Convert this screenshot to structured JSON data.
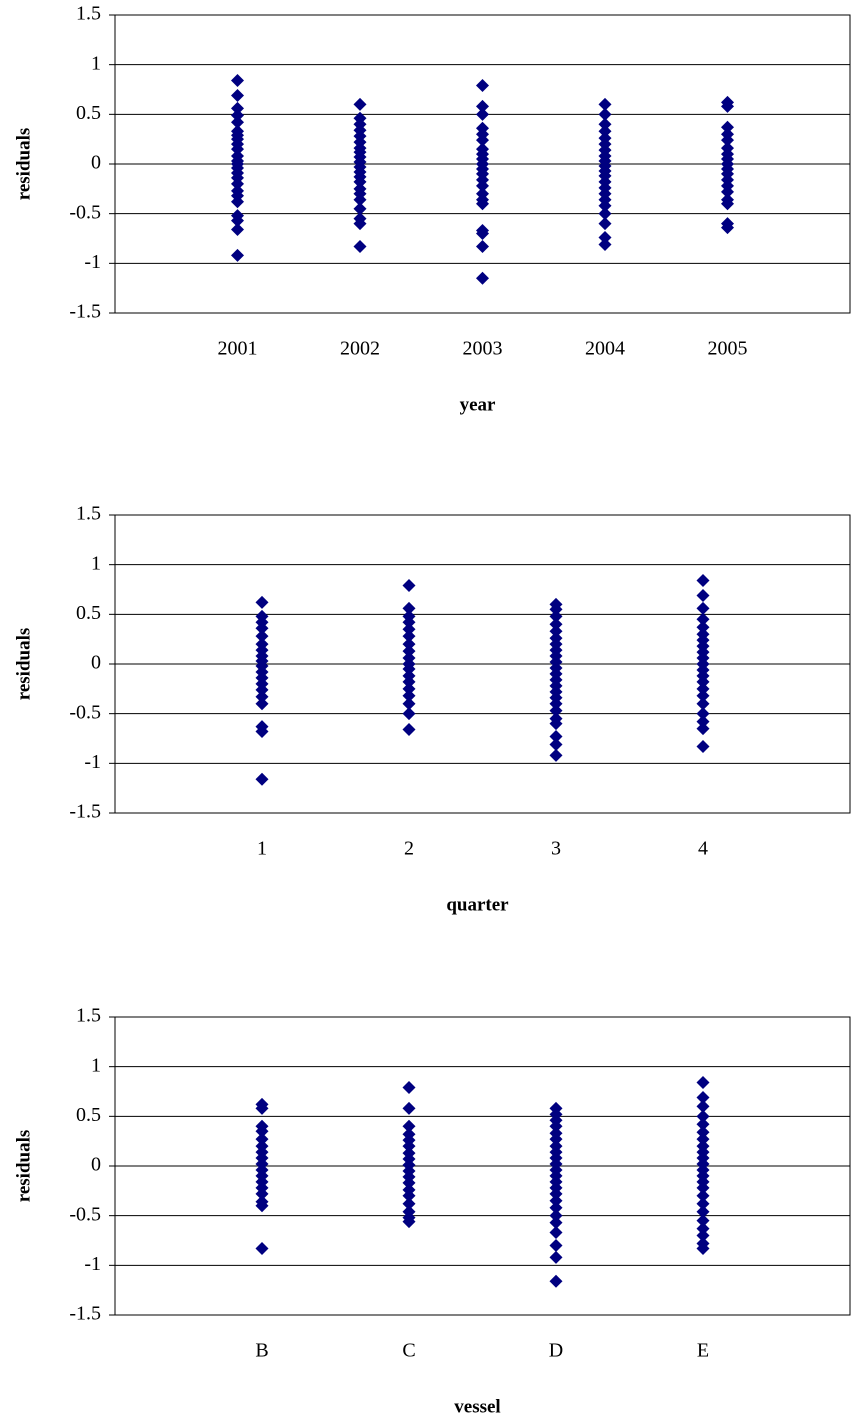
{
  "chart_data": [
    {
      "type": "scatter",
      "y_label": "residuals",
      "x_label": "year",
      "color": "#000080",
      "grid": true,
      "ylim": [
        -1.5,
        1.5
      ],
      "yticks": [
        1.5,
        1,
        0.5,
        0,
        -0.5,
        -1,
        -1.5
      ],
      "categories": [
        "2001",
        "2002",
        "2003",
        "2004",
        "2005"
      ],
      "values": [
        [
          0.84,
          0.69,
          0.56,
          0.49,
          0.42,
          0.33,
          0.29,
          0.25,
          0.2,
          0.15,
          0.08,
          0.03,
          0,
          -0.04,
          -0.09,
          -0.14,
          -0.2,
          -0.27,
          -0.32,
          -0.38,
          -0.52,
          -0.57,
          -0.66,
          -0.92
        ],
        [
          0.6,
          0.46,
          0.4,
          0.34,
          0.28,
          0.22,
          0.16,
          0.12,
          0.07,
          0.02,
          -0.03,
          -0.08,
          -0.13,
          -0.18,
          -0.25,
          -0.3,
          -0.36,
          -0.45,
          -0.55,
          -0.6,
          -0.83
        ],
        [
          0.79,
          0.58,
          0.5,
          0.36,
          0.3,
          0.24,
          0.15,
          0.1,
          0.05,
          0,
          -0.05,
          -0.1,
          -0.16,
          -0.22,
          -0.3,
          -0.36,
          -0.4,
          -0.67,
          -0.7,
          -0.83,
          -1.15
        ],
        [
          0.6,
          0.5,
          0.4,
          0.33,
          0.26,
          0.2,
          0.14,
          0.08,
          0.03,
          -0.02,
          -0.07,
          -0.12,
          -0.18,
          -0.24,
          -0.3,
          -0.36,
          -0.42,
          -0.5,
          -0.6,
          -0.74,
          -0.81
        ],
        [
          0.62,
          0.58,
          0.37,
          0.3,
          0.24,
          0.16,
          0.1,
          0.05,
          0,
          -0.05,
          -0.1,
          -0.16,
          -0.22,
          -0.28,
          -0.36,
          -0.4,
          -0.6,
          -0.64
        ]
      ]
    },
    {
      "type": "scatter",
      "y_label": "residuals",
      "x_label": "quarter",
      "color": "#000080",
      "grid": true,
      "ylim": [
        -1.5,
        1.5
      ],
      "yticks": [
        1.5,
        1,
        0.5,
        0,
        -0.5,
        -1,
        -1.5
      ],
      "categories": [
        "1",
        "2",
        "3",
        "4"
      ],
      "values": [
        [
          0.62,
          0.48,
          0.42,
          0.36,
          0.28,
          0.2,
          0.14,
          0.08,
          0.03,
          -0.02,
          -0.08,
          -0.14,
          -0.2,
          -0.26,
          -0.33,
          -0.4,
          -0.63,
          -0.68,
          -1.16
        ],
        [
          0.79,
          0.56,
          0.48,
          0.42,
          0.35,
          0.28,
          0.2,
          0.13,
          0.06,
          0,
          -0.05,
          -0.12,
          -0.18,
          -0.25,
          -0.32,
          -0.4,
          -0.5,
          -0.66
        ],
        [
          0.6,
          0.55,
          0.48,
          0.4,
          0.33,
          0.26,
          0.2,
          0.14,
          0.08,
          0.02,
          -0.04,
          -0.1,
          -0.16,
          -0.22,
          -0.28,
          -0.34,
          -0.4,
          -0.47,
          -0.55,
          -0.6,
          -0.73,
          -0.81,
          -0.92
        ],
        [
          0.84,
          0.69,
          0.56,
          0.45,
          0.37,
          0.3,
          0.24,
          0.18,
          0.12,
          0.06,
          0,
          -0.06,
          -0.12,
          -0.18,
          -0.25,
          -0.32,
          -0.4,
          -0.5,
          -0.58,
          -0.65,
          -0.83
        ]
      ]
    },
    {
      "type": "scatter",
      "y_label": "residuals",
      "x_label": "vessel",
      "color": "#000080",
      "grid": true,
      "ylim": [
        -1.5,
        1.5
      ],
      "yticks": [
        1.5,
        1,
        0.5,
        0,
        -0.5,
        -1,
        -1.5
      ],
      "categories": [
        "B",
        "C",
        "D",
        "E"
      ],
      "values": [
        [
          0.62,
          0.58,
          0.4,
          0.35,
          0.27,
          0.2,
          0.14,
          0.08,
          0.02,
          -0.04,
          -0.1,
          -0.16,
          -0.22,
          -0.28,
          -0.36,
          -0.4,
          -0.83
        ],
        [
          0.79,
          0.58,
          0.4,
          0.32,
          0.26,
          0.2,
          0.13,
          0.07,
          0.01,
          -0.05,
          -0.11,
          -0.17,
          -0.24,
          -0.3,
          -0.38,
          -0.46,
          -0.52,
          -0.56
        ],
        [
          0.58,
          0.52,
          0.46,
          0.4,
          0.33,
          0.27,
          0.2,
          0.14,
          0.08,
          0.02,
          -0.04,
          -0.1,
          -0.16,
          -0.22,
          -0.28,
          -0.35,
          -0.42,
          -0.5,
          -0.57,
          -0.67,
          -0.8,
          -0.92,
          -1.16
        ],
        [
          0.84,
          0.69,
          0.6,
          0.5,
          0.42,
          0.34,
          0.27,
          0.2,
          0.14,
          0.08,
          0.02,
          -0.04,
          -0.1,
          -0.16,
          -0.22,
          -0.3,
          -0.38,
          -0.46,
          -0.55,
          -0.63,
          -0.7,
          -0.78,
          -0.83
        ]
      ]
    }
  ]
}
